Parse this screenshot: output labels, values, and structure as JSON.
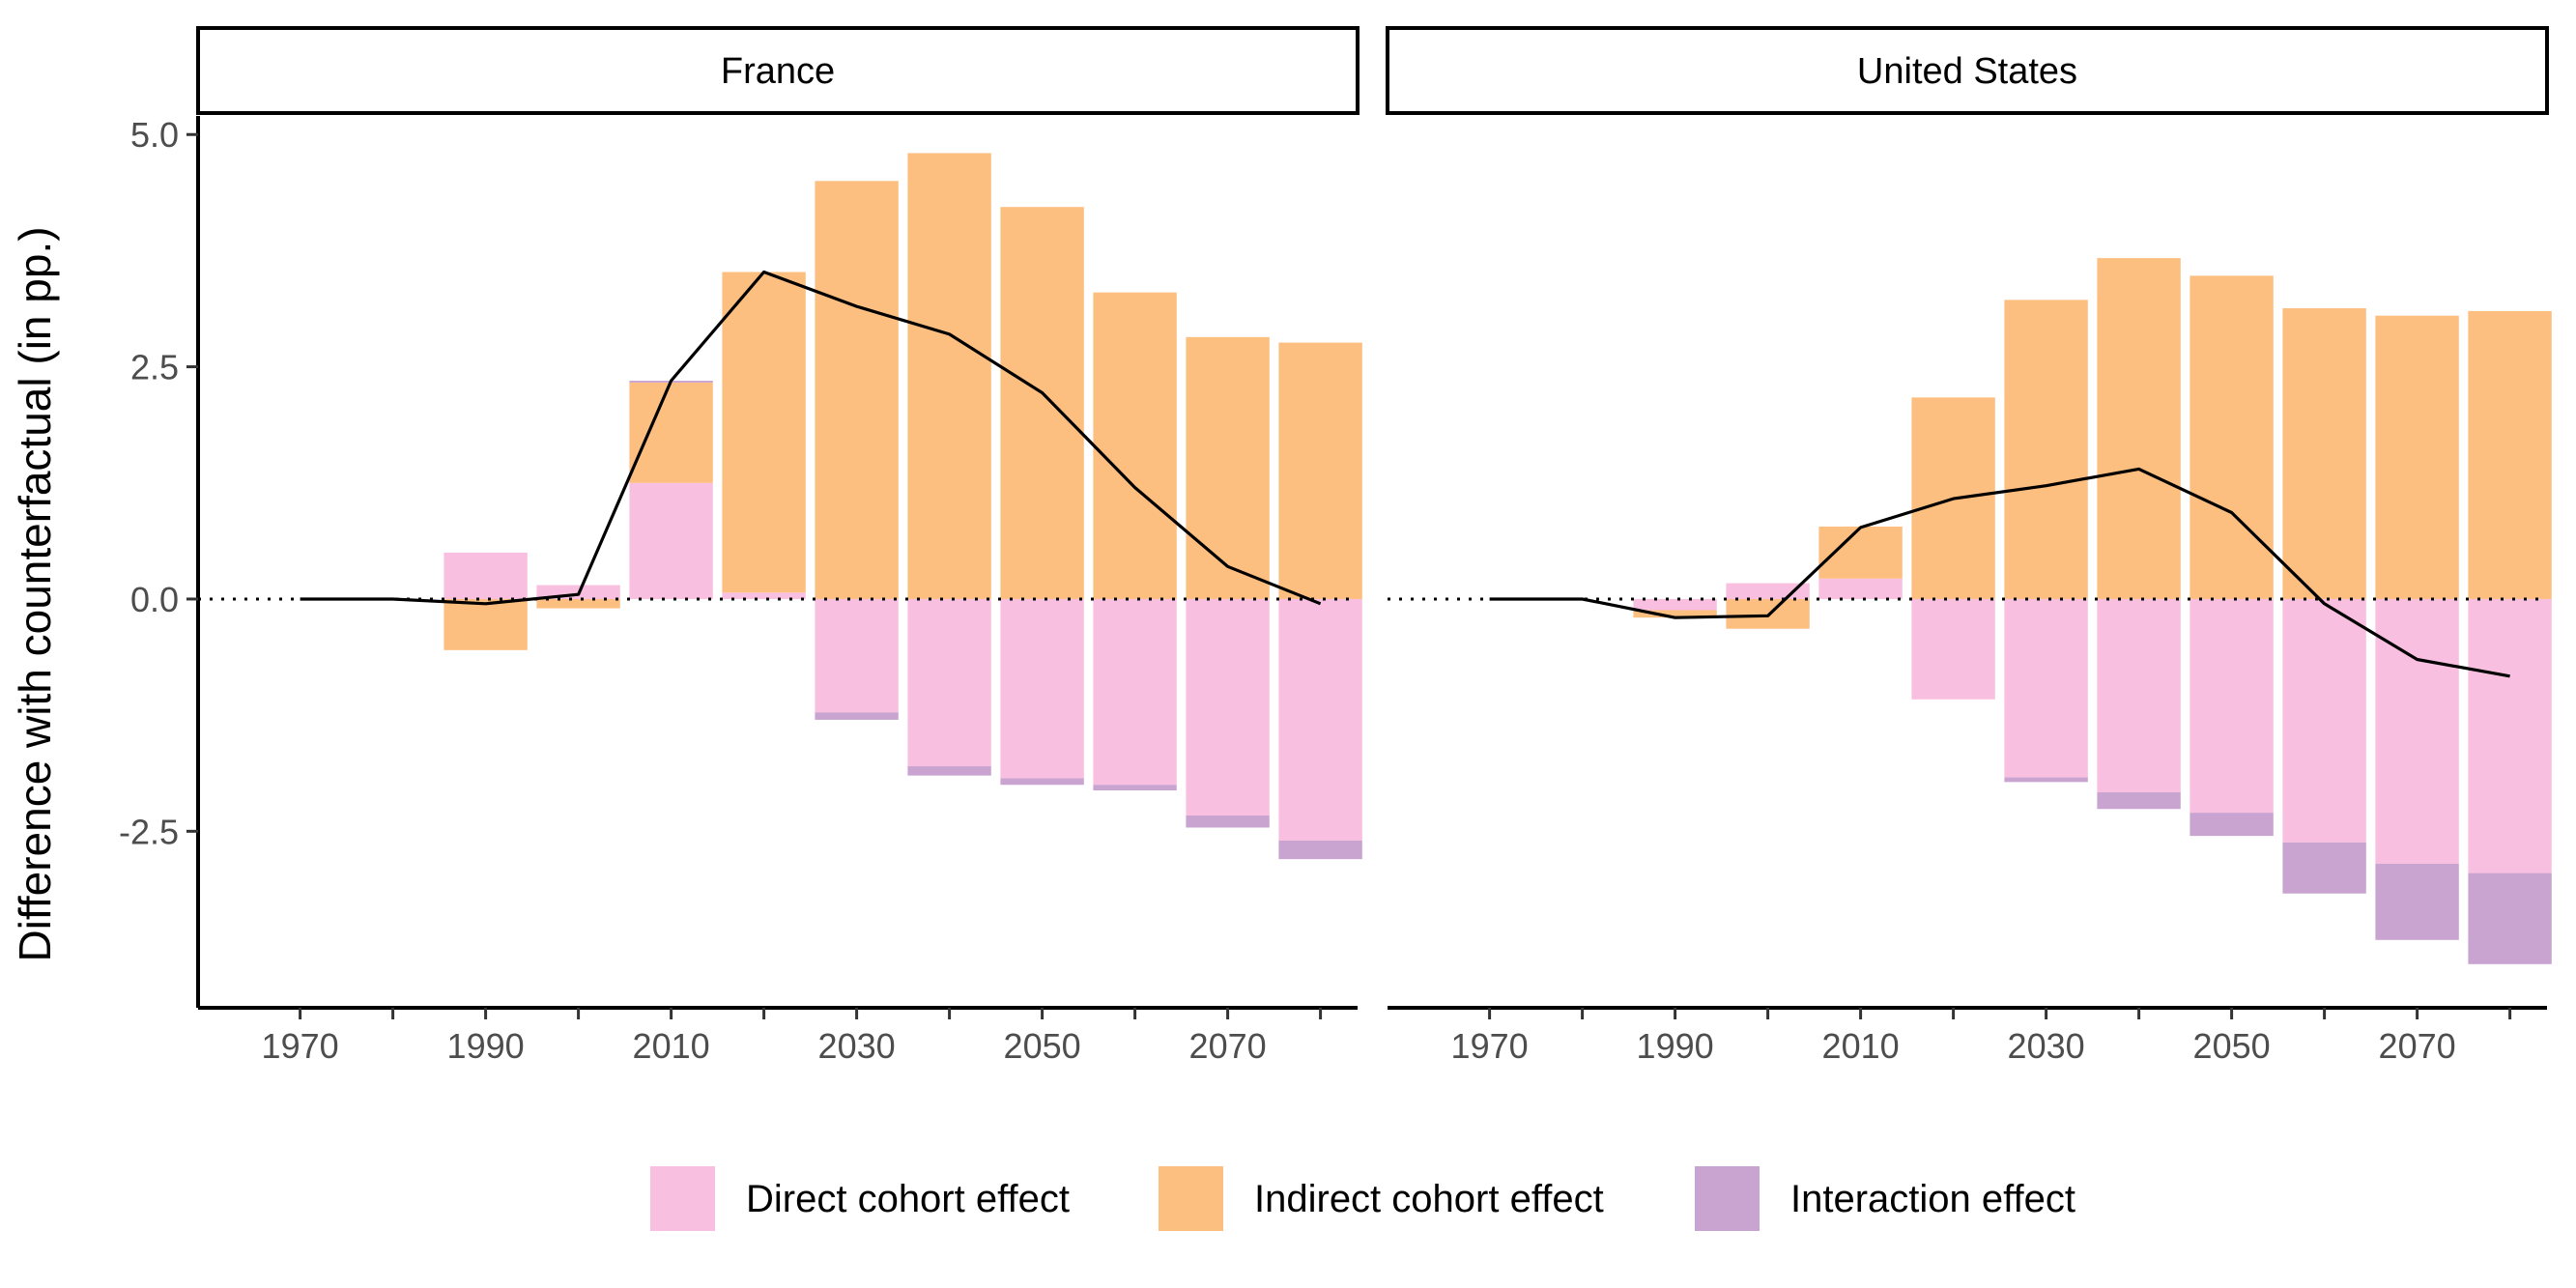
{
  "chart_data": {
    "type": "bar",
    "stacked": true,
    "ylabel": "Difference with counterfactual (in pp.)",
    "xlabel": "",
    "ylim": [
      -4.4,
      5.2
    ],
    "y_ticks": [
      -2.5,
      0.0,
      2.5,
      5.0
    ],
    "y_tick_labels": [
      "-2.5",
      "0.0",
      "2.5",
      "5.0"
    ],
    "xlim": [
      1959,
      2084
    ],
    "x_ticks": [
      1970,
      1980,
      1990,
      2000,
      2010,
      2020,
      2030,
      2040,
      2050,
      2060,
      2070,
      2080
    ],
    "x_tick_labels": [
      "1970",
      "",
      "1990",
      "",
      "2010",
      "",
      "2030",
      "",
      "2050",
      "",
      "2070",
      ""
    ],
    "zero_line": "dotted",
    "grid": false,
    "legend_position": "bottom",
    "legend": [
      {
        "name": "Direct cohort effect",
        "color": "#F9BFE0"
      },
      {
        "name": "Indirect cohort effect",
        "color": "#FDBF80"
      },
      {
        "name": "Interaction effect",
        "color": "#C9A4D1"
      }
    ],
    "colors": {
      "direct": "#F9BFE0",
      "indirect": "#FDBF80",
      "interaction": "#C9A4D1",
      "line": "#000000"
    },
    "facets": [
      {
        "name": "France",
        "x": [
          1970,
          1980,
          1990,
          2000,
          2010,
          2020,
          2030,
          2040,
          2050,
          2060,
          2070,
          2080
        ],
        "direct": [
          0,
          0,
          0.5,
          0.15,
          1.25,
          0.07,
          -1.22,
          -1.8,
          -1.93,
          -2.0,
          -2.33,
          -2.6
        ],
        "indirect": [
          0,
          0,
          -0.55,
          -0.1,
          1.08,
          3.45,
          4.5,
          4.8,
          4.22,
          3.3,
          2.82,
          2.76
        ],
        "interaction": [
          0,
          0,
          0,
          0,
          0.02,
          0,
          -0.08,
          -0.1,
          -0.07,
          -0.06,
          -0.13,
          -0.2
        ],
        "total": [
          0,
          0,
          -0.05,
          0.05,
          2.35,
          3.52,
          3.15,
          2.85,
          2.22,
          1.2,
          0.35,
          -0.05
        ]
      },
      {
        "name": "United States",
        "x": [
          1970,
          1980,
          1990,
          2000,
          2010,
          2020,
          2030,
          2040,
          2050,
          2060,
          2070,
          2080
        ],
        "direct": [
          0,
          0,
          -0.12,
          0.17,
          0.22,
          -1.08,
          -1.92,
          -2.08,
          -2.3,
          -2.62,
          -2.85,
          -2.95
        ],
        "indirect": [
          0,
          0,
          -0.08,
          -0.32,
          0.56,
          2.17,
          3.22,
          3.67,
          3.48,
          3.13,
          3.05,
          3.1
        ],
        "interaction": [
          0,
          0,
          0,
          0,
          0,
          0,
          -0.05,
          -0.18,
          -0.25,
          -0.55,
          -0.82,
          -0.98
        ],
        "total": [
          0,
          0,
          -0.2,
          -0.18,
          0.77,
          1.08,
          1.22,
          1.4,
          0.93,
          -0.05,
          -0.65,
          -0.83
        ]
      }
    ]
  }
}
